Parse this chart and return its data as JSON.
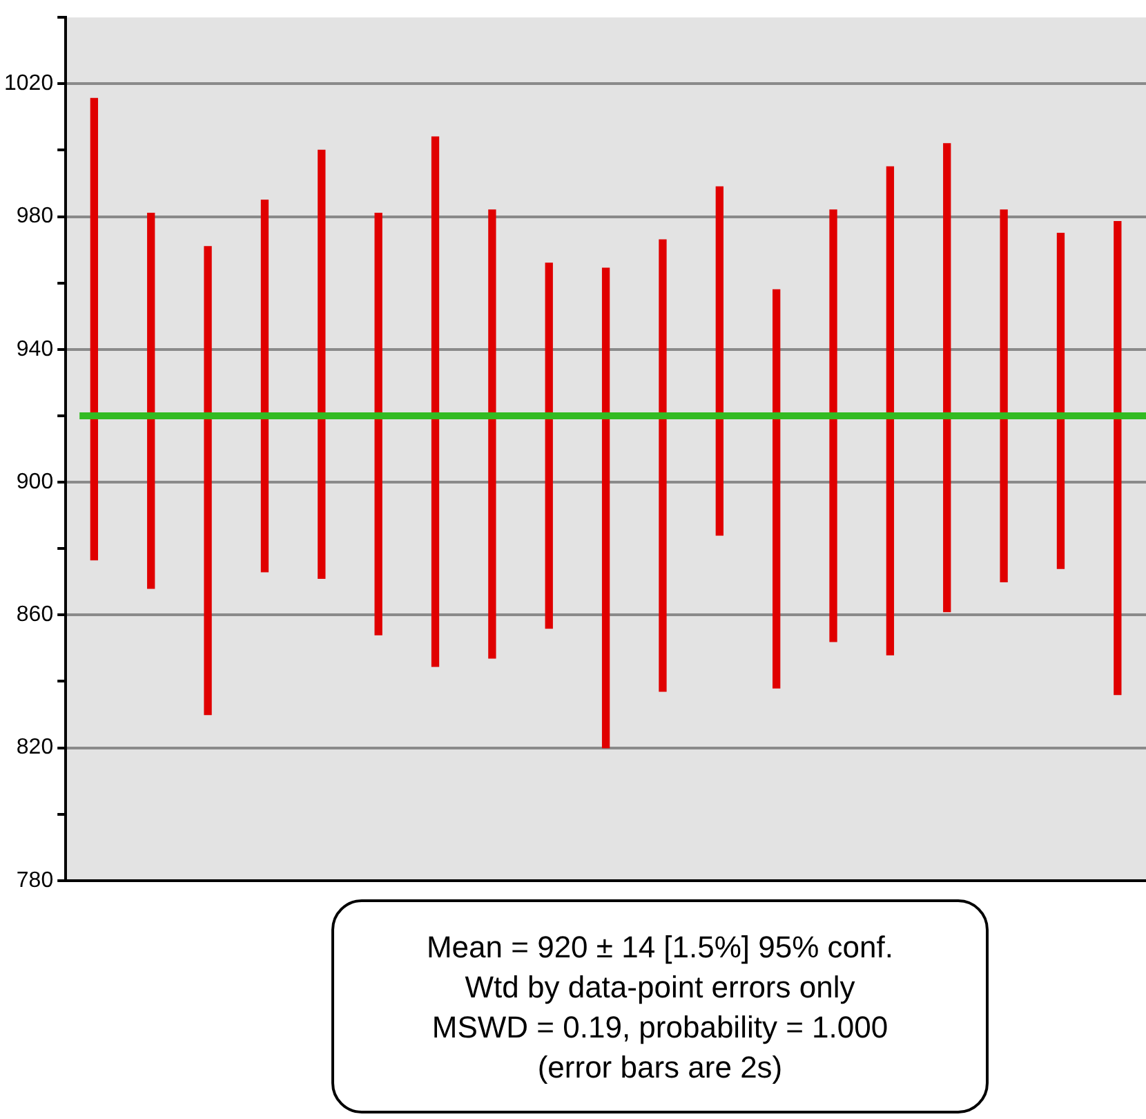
{
  "chart_data": {
    "type": "bar",
    "categories": [
      null,
      null,
      null,
      null,
      null,
      null,
      null,
      null,
      null,
      null,
      null,
      null,
      null,
      null,
      null,
      null,
      null,
      null,
      null
    ],
    "base": [
      876.6,
      868,
      830,
      873,
      871,
      854,
      844.5,
      847,
      856,
      820,
      837,
      884,
      838,
      852,
      848,
      861,
      870,
      874,
      836
    ],
    "values": [
      139,
      113,
      141,
      112,
      129,
      127,
      159.5,
      135,
      110,
      144.5,
      136,
      105,
      120,
      130,
      147,
      141,
      112,
      101,
      142.5
    ],
    "color": "#e00000",
    "ylim": [
      780,
      1040
    ],
    "yticks": [
      780,
      {
        "value": 800,
        "label": null
      },
      820,
      {
        "value": 840,
        "label": null
      },
      860,
      {
        "value": 880,
        "label": null
      },
      900,
      {
        "value": 920,
        "label": null
      },
      940,
      {
        "value": 960,
        "label": null
      },
      980,
      {
        "value": 1000,
        "label": null
      },
      1020,
      {
        "value": 1040,
        "label": null
      }
    ],
    "grid": "y",
    "legend": false,
    "tick_labels": "y",
    "ref_lines": [
      {
        "axis": "y",
        "value": 920,
        "color": "#33bb22"
      }
    ],
    "annotations": [
      "Mean = 920 ± 14  [1.5%]  95% conf.",
      "Wtd by data-point errors only",
      "MSWD = 0.19, probability = 1.000",
      "(error bars are 2s)"
    ]
  }
}
